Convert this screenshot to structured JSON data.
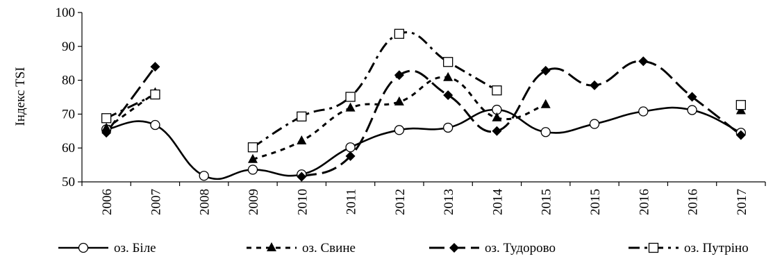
{
  "chart_data": {
    "type": "line",
    "title": "",
    "xlabel": "",
    "ylabel": "Індекс TSI",
    "ylim": [
      50,
      100
    ],
    "yticks": [
      50,
      60,
      70,
      80,
      90,
      100
    ],
    "grid": false,
    "legend_position": "bottom",
    "categories": [
      "2006",
      "2007",
      "2008",
      "2009",
      "2010",
      "2011",
      "2012",
      "2013",
      "2014",
      "2015",
      "2015",
      "2016",
      "2016",
      "2017"
    ],
    "series": [
      {
        "name": "оз. Біле",
        "marker": "circle-open",
        "line_style": "solid",
        "color": "#000000",
        "values": [
          65.5,
          66.8,
          51.8,
          53.6,
          52.2,
          60.2,
          65.3,
          66.0,
          71.3,
          64.7,
          67.1,
          70.8,
          71.2,
          64.5
        ]
      },
      {
        "name": "оз. Свине",
        "marker": "triangle-filled",
        "line_style": "short-dash",
        "color": "#000000",
        "values": [
          65.8,
          76.3,
          null,
          56.6,
          62.1,
          71.8,
          73.6,
          80.8,
          68.9,
          72.8,
          null,
          null,
          null,
          71.0
        ]
      },
      {
        "name": "оз. Тудорово",
        "marker": "diamond-filled",
        "line_style": "long-dash",
        "color": "#000000",
        "values": [
          64.5,
          84.0,
          null,
          null,
          51.5,
          57.6,
          81.5,
          75.6,
          65.0,
          82.8,
          78.5,
          85.6,
          75.1,
          63.8
        ]
      },
      {
        "name": "оз. Путріно",
        "marker": "square-open",
        "line_style": "dash-dot",
        "color": "#000000",
        "values": [
          68.8,
          75.8,
          null,
          60.2,
          69.3,
          75.1,
          93.7,
          85.4,
          77.0,
          null,
          null,
          null,
          null,
          72.7
        ]
      }
    ]
  }
}
